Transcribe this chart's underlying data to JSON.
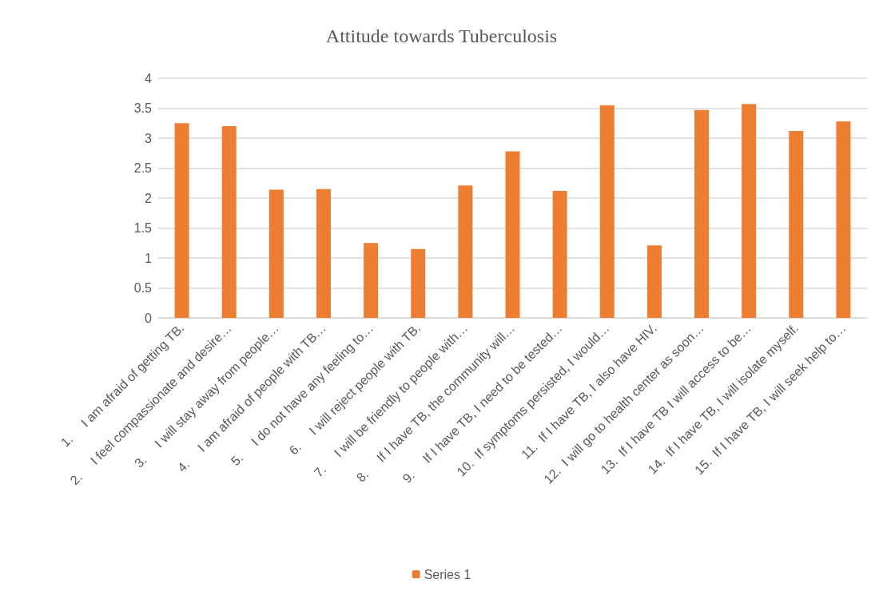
{
  "chart_data": {
    "type": "bar",
    "title": "Attitude towards Tuberculosis",
    "categories": [
      "1.     I am afraid of getting TB.",
      "2.     I feel compassionate and desire…",
      "3.     I will stay away from people…",
      "4.     I am afraid of people with TB…",
      "5.     I do not have any feeling to…",
      "6.     I will reject people with TB.",
      "7.     I will be friendly to people with…",
      "8.     If I have TB, the community will…",
      "9.     If I have TB, I need to be tested…",
      "10.  If symptoms persisted, I would…",
      "11.  If I have TB, I also have HIV.",
      "12.  I will go to health center as soon…",
      "13.  If I have TB I will access to be…",
      "14.  If I have TB, I will isolate myself.",
      "15.  If I have TB, I will seek help to…"
    ],
    "series": [
      {
        "name": "Series 1",
        "color": "#ed7d31",
        "values": [
          3.25,
          3.2,
          2.14,
          2.15,
          1.25,
          1.15,
          2.21,
          2.78,
          2.12,
          3.55,
          1.21,
          3.47,
          3.57,
          3.12,
          3.28
        ]
      }
    ],
    "ylim": [
      0,
      4
    ],
    "yticks": [
      0,
      0.5,
      1,
      1.5,
      2,
      2.5,
      3,
      3.5,
      4
    ],
    "grid": "y",
    "legend": "bottom"
  }
}
